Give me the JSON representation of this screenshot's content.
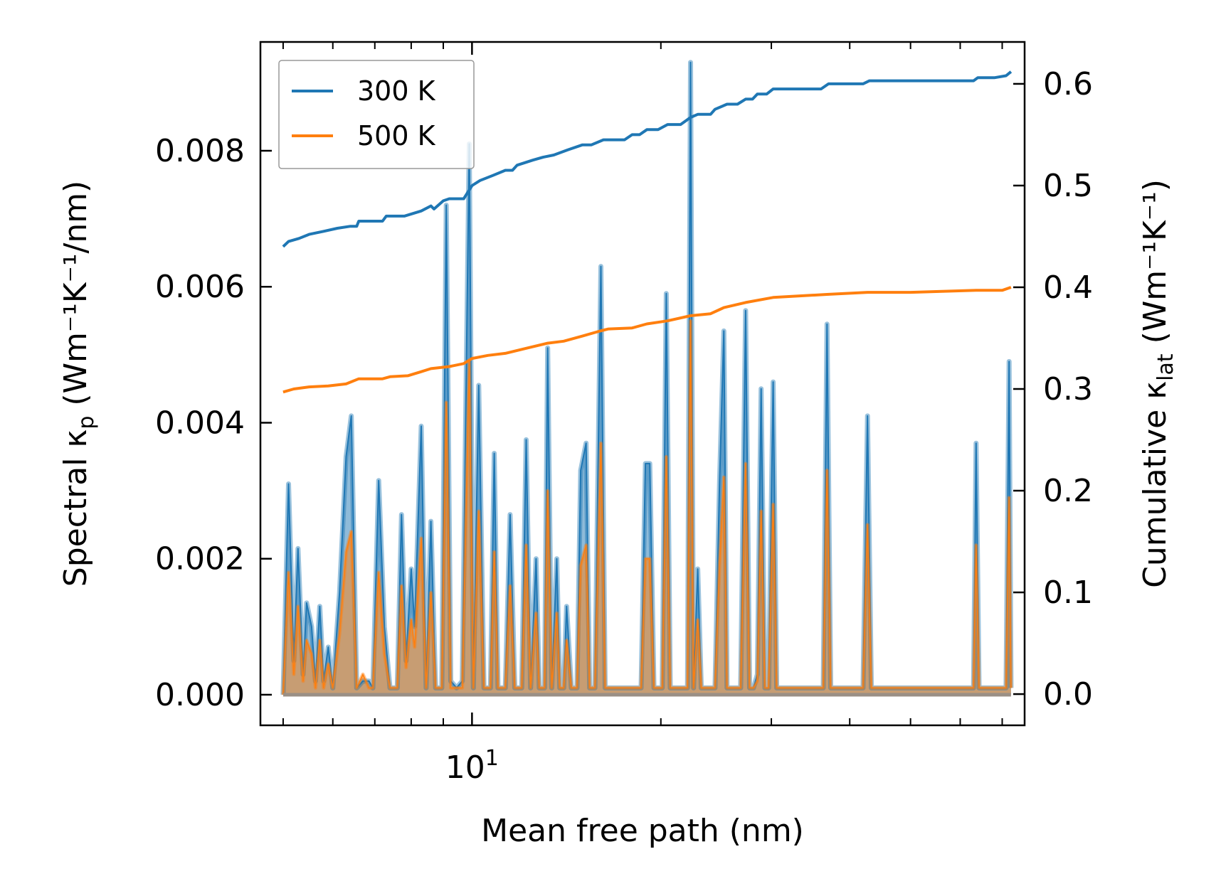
{
  "chart_data": {
    "type": "line",
    "xlabel": "Mean free path (nm)",
    "ylabel_left": {
      "prefix": "Spectral κ",
      "subscript": "p",
      "suffix": " (Wm⁻¹K⁻¹/nm)"
    },
    "ylabel_right": {
      "prefix": "Cumulative κ",
      "subscript": "lat",
      "suffix": " (Wm⁻¹K⁻¹)"
    },
    "x_scale": "log",
    "xlim": [
      4.6,
      76
    ],
    "ylim_left": [
      -0.00045,
      0.0096
    ],
    "ylim_right": [
      -0.0307,
      0.6412
    ],
    "x_tick_label": {
      "value": 10,
      "base": "10",
      "exponent": "1"
    },
    "left_ticks": [
      {
        "value": 0.0,
        "label": "0.000"
      },
      {
        "value": 0.002,
        "label": "0.002"
      },
      {
        "value": 0.004,
        "label": "0.004"
      },
      {
        "value": 0.006,
        "label": "0.006"
      },
      {
        "value": 0.008,
        "label": "0.008"
      }
    ],
    "right_ticks": [
      {
        "value": 0.0,
        "label": "0.0"
      },
      {
        "value": 0.1,
        "label": "0.1"
      },
      {
        "value": 0.2,
        "label": "0.2"
      },
      {
        "value": 0.3,
        "label": "0.3"
      },
      {
        "value": 0.4,
        "label": "0.4"
      },
      {
        "value": 0.5,
        "label": "0.5"
      },
      {
        "value": 0.6,
        "label": "0.6"
      }
    ],
    "legend_position": "top-left",
    "series": [
      {
        "name": "300 K",
        "color": "#1f77b4"
      },
      {
        "name": "500 K",
        "color": "#ff7f0e"
      }
    ],
    "spectral_300K": [
      [
        5.0,
        0.0
      ],
      [
        5.1,
        0.0031
      ],
      [
        5.2,
        0.0005
      ],
      [
        5.28,
        0.00215
      ],
      [
        5.38,
        0.0003
      ],
      [
        5.45,
        0.00135
      ],
      [
        5.55,
        0.001
      ],
      [
        5.63,
        0.0002
      ],
      [
        5.72,
        0.0013
      ],
      [
        5.8,
        0.0002
      ],
      [
        5.9,
        0.0007
      ],
      [
        6.0,
        0.0001
      ],
      [
        6.15,
        0.0015
      ],
      [
        6.3,
        0.0035
      ],
      [
        6.42,
        0.0041
      ],
      [
        6.55,
        0.0001
      ],
      [
        6.7,
        0.0002
      ],
      [
        6.85,
        0.0002
      ],
      [
        6.95,
        0.0001
      ],
      [
        7.1,
        0.00315
      ],
      [
        7.25,
        0.001
      ],
      [
        7.4,
        0.0001
      ],
      [
        7.6,
        0.0001
      ],
      [
        7.72,
        0.00265
      ],
      [
        7.85,
        0.0005
      ],
      [
        8.0,
        0.00185
      ],
      [
        8.1,
        0.001
      ],
      [
        8.3,
        0.00395
      ],
      [
        8.45,
        0.0001
      ],
      [
        8.6,
        0.00255
      ],
      [
        8.75,
        0.0001
      ],
      [
        8.95,
        0.0001
      ],
      [
        9.1,
        0.0072
      ],
      [
        9.25,
        0.0002
      ],
      [
        9.45,
        0.0001
      ],
      [
        9.65,
        0.0002
      ],
      [
        9.9,
        0.0081
      ],
      [
        10.05,
        0.0001
      ],
      [
        10.25,
        0.00455
      ],
      [
        10.45,
        0.0001
      ],
      [
        10.7,
        0.0001
      ],
      [
        10.85,
        0.00355
      ],
      [
        11.0,
        0.0001
      ],
      [
        11.3,
        0.0001
      ],
      [
        11.5,
        0.00265
      ],
      [
        11.7,
        0.0001
      ],
      [
        12.0,
        0.0001
      ],
      [
        12.2,
        0.00375
      ],
      [
        12.4,
        0.0001
      ],
      [
        12.65,
        0.002
      ],
      [
        12.8,
        0.0001
      ],
      [
        13.05,
        0.0001
      ],
      [
        13.2,
        0.0051
      ],
      [
        13.4,
        0.0001
      ],
      [
        13.65,
        0.002
      ],
      [
        13.8,
        0.0001
      ],
      [
        14.0,
        0.0001
      ],
      [
        14.15,
        0.0013
      ],
      [
        14.4,
        0.0001
      ],
      [
        14.7,
        0.0001
      ],
      [
        14.9,
        0.0033
      ],
      [
        15.2,
        0.0037
      ],
      [
        15.4,
        0.0001
      ],
      [
        15.7,
        0.0001
      ],
      [
        16.05,
        0.0063
      ],
      [
        16.3,
        0.0001
      ],
      [
        16.8,
        0.0001
      ],
      [
        17.5,
        0.0001
      ],
      [
        18.2,
        0.0001
      ],
      [
        18.6,
        0.0001
      ],
      [
        18.9,
        0.0034
      ],
      [
        19.2,
        0.0034
      ],
      [
        19.5,
        0.0001
      ],
      [
        19.8,
        0.0001
      ],
      [
        20.1,
        0.0001
      ],
      [
        20.4,
        0.0059
      ],
      [
        20.7,
        0.0001
      ],
      [
        21.0,
        0.0001
      ],
      [
        21.5,
        0.0001
      ],
      [
        22.05,
        0.0001
      ],
      [
        22.3,
        0.0093
      ],
      [
        22.55,
        0.0001
      ],
      [
        22.9,
        0.00185
      ],
      [
        23.2,
        0.0001
      ],
      [
        23.7,
        0.0001
      ],
      [
        24.4,
        0.0001
      ],
      [
        24.8,
        0.0031
      ],
      [
        25.2,
        0.00535
      ],
      [
        25.5,
        0.0001
      ],
      [
        26.0,
        0.0001
      ],
      [
        26.8,
        0.0001
      ],
      [
        27.3,
        0.00565
      ],
      [
        27.7,
        0.0001
      ],
      [
        28.1,
        0.0001
      ],
      [
        28.5,
        0.0003
      ],
      [
        28.9,
        0.0045
      ],
      [
        29.3,
        0.0001
      ],
      [
        29.7,
        0.0001
      ],
      [
        30.2,
        0.0046
      ],
      [
        30.6,
        0.0001
      ],
      [
        31.5,
        0.0001
      ],
      [
        33.0,
        0.0001
      ],
      [
        35.0,
        0.0001
      ],
      [
        36.3,
        0.0001
      ],
      [
        36.8,
        0.00545
      ],
      [
        37.3,
        0.0001
      ],
      [
        39.0,
        0.0001
      ],
      [
        41.0,
        0.0001
      ],
      [
        42.0,
        0.0001
      ],
      [
        42.7,
        0.0041
      ],
      [
        43.3,
        0.0001
      ],
      [
        47.0,
        0.0001
      ],
      [
        52.0,
        0.0001
      ],
      [
        63.0,
        0.0001
      ],
      [
        63.6,
        0.0037
      ],
      [
        64.3,
        0.0001
      ],
      [
        68.0,
        0.0001
      ],
      [
        71.0,
        0.0001
      ],
      [
        71.8,
        0.0049
      ],
      [
        72.3,
        0.0001
      ]
    ],
    "spectral_500K": [
      [
        5.0,
        0.0
      ],
      [
        5.1,
        0.0018
      ],
      [
        5.2,
        0.0003
      ],
      [
        5.28,
        0.0013
      ],
      [
        5.38,
        0.0002
      ],
      [
        5.45,
        0.0008
      ],
      [
        5.55,
        0.0006
      ],
      [
        5.63,
        0.0001
      ],
      [
        5.72,
        0.0008
      ],
      [
        5.8,
        0.0001
      ],
      [
        5.9,
        0.00045
      ],
      [
        6.0,
        0.0001
      ],
      [
        6.15,
        0.0009
      ],
      [
        6.3,
        0.0021
      ],
      [
        6.42,
        0.0024
      ],
      [
        6.55,
        0.0001
      ],
      [
        6.7,
        0.0003
      ],
      [
        6.85,
        0.0001
      ],
      [
        6.95,
        0.0001
      ],
      [
        7.1,
        0.0018
      ],
      [
        7.25,
        0.0006
      ],
      [
        7.4,
        0.0001
      ],
      [
        7.6,
        0.0001
      ],
      [
        7.72,
        0.0016
      ],
      [
        7.85,
        0.0004
      ],
      [
        8.0,
        0.0011
      ],
      [
        8.1,
        0.0007
      ],
      [
        8.3,
        0.0023
      ],
      [
        8.45,
        0.0001
      ],
      [
        8.6,
        0.0015
      ],
      [
        8.75,
        0.0001
      ],
      [
        8.95,
        0.0001
      ],
      [
        9.1,
        0.0043
      ],
      [
        9.25,
        0.0001
      ],
      [
        9.45,
        0.0001
      ],
      [
        9.65,
        0.0001
      ],
      [
        9.9,
        0.0049
      ],
      [
        10.05,
        0.0001
      ],
      [
        10.25,
        0.0027
      ],
      [
        10.45,
        0.0001
      ],
      [
        10.7,
        0.0001
      ],
      [
        10.85,
        0.0021
      ],
      [
        11.0,
        0.0001
      ],
      [
        11.3,
        0.0001
      ],
      [
        11.5,
        0.0016
      ],
      [
        11.7,
        0.0001
      ],
      [
        12.0,
        0.0001
      ],
      [
        12.2,
        0.0022
      ],
      [
        12.4,
        0.0001
      ],
      [
        12.65,
        0.0012
      ],
      [
        12.8,
        0.0001
      ],
      [
        13.05,
        0.0001
      ],
      [
        13.2,
        0.003
      ],
      [
        13.4,
        0.0001
      ],
      [
        13.65,
        0.0012
      ],
      [
        13.8,
        0.0001
      ],
      [
        14.0,
        0.0001
      ],
      [
        14.15,
        0.0008
      ],
      [
        14.4,
        0.0001
      ],
      [
        14.7,
        0.0001
      ],
      [
        14.9,
        0.0019
      ],
      [
        15.2,
        0.0022
      ],
      [
        15.4,
        0.0001
      ],
      [
        15.7,
        0.0001
      ],
      [
        16.05,
        0.0037
      ],
      [
        16.3,
        0.0001
      ],
      [
        16.8,
        0.0001
      ],
      [
        17.5,
        0.0001
      ],
      [
        18.2,
        0.0001
      ],
      [
        18.6,
        0.0001
      ],
      [
        18.9,
        0.002
      ],
      [
        19.2,
        0.002
      ],
      [
        19.5,
        0.0001
      ],
      [
        19.8,
        0.0001
      ],
      [
        20.1,
        0.0001
      ],
      [
        20.4,
        0.0035
      ],
      [
        20.7,
        0.0001
      ],
      [
        21.0,
        0.0001
      ],
      [
        21.5,
        0.0001
      ],
      [
        22.05,
        0.0001
      ],
      [
        22.3,
        0.0055
      ],
      [
        22.55,
        0.0001
      ],
      [
        22.9,
        0.0011
      ],
      [
        23.2,
        0.0001
      ],
      [
        23.7,
        0.0001
      ],
      [
        24.4,
        0.0001
      ],
      [
        24.8,
        0.0019
      ],
      [
        25.2,
        0.0032
      ],
      [
        25.5,
        0.0001
      ],
      [
        26.0,
        0.0001
      ],
      [
        26.8,
        0.0001
      ],
      [
        27.3,
        0.0034
      ],
      [
        27.7,
        0.0001
      ],
      [
        28.1,
        0.0001
      ],
      [
        28.5,
        0.0002
      ],
      [
        28.9,
        0.0027
      ],
      [
        29.3,
        0.0001
      ],
      [
        29.7,
        0.0001
      ],
      [
        30.2,
        0.0028
      ],
      [
        30.6,
        0.0001
      ],
      [
        31.5,
        0.0001
      ],
      [
        33.0,
        0.0001
      ],
      [
        35.0,
        0.0001
      ],
      [
        36.3,
        0.0001
      ],
      [
        36.8,
        0.0033
      ],
      [
        37.3,
        0.0001
      ],
      [
        39.0,
        0.0001
      ],
      [
        41.0,
        0.0001
      ],
      [
        42.0,
        0.0001
      ],
      [
        42.7,
        0.0025
      ],
      [
        43.3,
        0.0001
      ],
      [
        47.0,
        0.0001
      ],
      [
        52.0,
        0.0001
      ],
      [
        63.0,
        0.0001
      ],
      [
        63.6,
        0.0022
      ],
      [
        64.3,
        0.0001
      ],
      [
        68.0,
        0.0001
      ],
      [
        71.0,
        0.0001
      ],
      [
        71.8,
        0.0029
      ],
      [
        72.3,
        0.0001
      ]
    ],
    "cumulative_300K": [
      [
        5.0,
        0.44
      ],
      [
        5.1,
        0.445
      ],
      [
        5.3,
        0.448
      ],
      [
        5.5,
        0.452
      ],
      [
        5.8,
        0.455
      ],
      [
        6.1,
        0.458
      ],
      [
        6.4,
        0.46
      ],
      [
        6.55,
        0.46
      ],
      [
        6.6,
        0.465
      ],
      [
        6.9,
        0.465
      ],
      [
        7.2,
        0.465
      ],
      [
        7.3,
        0.47
      ],
      [
        7.8,
        0.47
      ],
      [
        8.3,
        0.475
      ],
      [
        8.6,
        0.48
      ],
      [
        8.7,
        0.477
      ],
      [
        9.0,
        0.485
      ],
      [
        9.2,
        0.487
      ],
      [
        9.7,
        0.487
      ],
      [
        10.0,
        0.5
      ],
      [
        10.3,
        0.505
      ],
      [
        10.8,
        0.51
      ],
      [
        11.3,
        0.515
      ],
      [
        11.6,
        0.515
      ],
      [
        11.8,
        0.52
      ],
      [
        12.5,
        0.525
      ],
      [
        13.0,
        0.528
      ],
      [
        13.5,
        0.53
      ],
      [
        14.2,
        0.535
      ],
      [
        15.0,
        0.54
      ],
      [
        15.5,
        0.54
      ],
      [
        16.2,
        0.545
      ],
      [
        17.5,
        0.545
      ],
      [
        18.0,
        0.55
      ],
      [
        18.5,
        0.55
      ],
      [
        19.0,
        0.555
      ],
      [
        19.8,
        0.555
      ],
      [
        20.5,
        0.56
      ],
      [
        21.5,
        0.56
      ],
      [
        22.3,
        0.567
      ],
      [
        22.9,
        0.57
      ],
      [
        24.0,
        0.57
      ],
      [
        24.4,
        0.575
      ],
      [
        25.5,
        0.58
      ],
      [
        26.5,
        0.58
      ],
      [
        27.3,
        0.585
      ],
      [
        28.0,
        0.585
      ],
      [
        28.5,
        0.59
      ],
      [
        29.5,
        0.59
      ],
      [
        30.2,
        0.595
      ],
      [
        33.0,
        0.595
      ],
      [
        36.0,
        0.595
      ],
      [
        37.0,
        0.6
      ],
      [
        42.0,
        0.6
      ],
      [
        43.0,
        0.603
      ],
      [
        52.0,
        0.603
      ],
      [
        63.0,
        0.603
      ],
      [
        64.0,
        0.606
      ],
      [
        68.0,
        0.606
      ],
      [
        71.0,
        0.608
      ],
      [
        72.3,
        0.612
      ]
    ],
    "cumulative_500K": [
      [
        5.0,
        0.297
      ],
      [
        5.2,
        0.3
      ],
      [
        5.5,
        0.302
      ],
      [
        5.9,
        0.303
      ],
      [
        6.3,
        0.305
      ],
      [
        6.6,
        0.31
      ],
      [
        7.2,
        0.31
      ],
      [
        7.4,
        0.312
      ],
      [
        7.9,
        0.313
      ],
      [
        8.3,
        0.317
      ],
      [
        8.6,
        0.32
      ],
      [
        9.2,
        0.322
      ],
      [
        9.7,
        0.325
      ],
      [
        10.0,
        0.33
      ],
      [
        10.6,
        0.333
      ],
      [
        11.3,
        0.335
      ],
      [
        12.2,
        0.34
      ],
      [
        13.2,
        0.345
      ],
      [
        14.0,
        0.347
      ],
      [
        15.0,
        0.352
      ],
      [
        16.0,
        0.357
      ],
      [
        16.5,
        0.359
      ],
      [
        18.0,
        0.36
      ],
      [
        19.0,
        0.364
      ],
      [
        20.5,
        0.367
      ],
      [
        22.3,
        0.372
      ],
      [
        24.0,
        0.374
      ],
      [
        25.2,
        0.38
      ],
      [
        27.3,
        0.385
      ],
      [
        30.2,
        0.39
      ],
      [
        36.8,
        0.393
      ],
      [
        42.7,
        0.395
      ],
      [
        50.0,
        0.395
      ],
      [
        63.6,
        0.397
      ],
      [
        70.0,
        0.397
      ],
      [
        72.3,
        0.4
      ]
    ]
  }
}
